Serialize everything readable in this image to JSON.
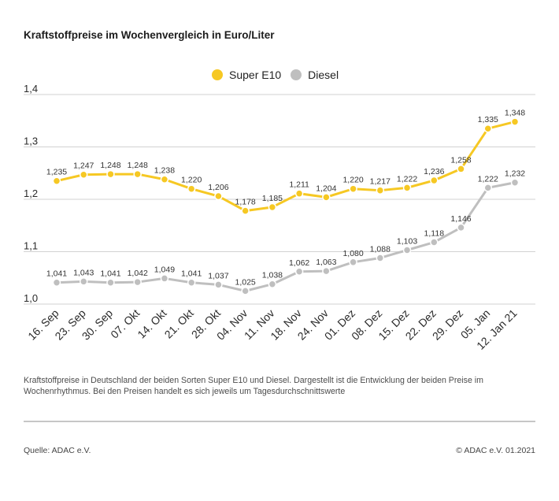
{
  "caption_lines": [
    "Kraftstoffpreise in Deutschland der beiden Sorten Super E10 und Diesel. Dargestellt ist die Entwicklung der beiden Preise im",
    "Wochenrhythmus. Bei den Preisen handelt es sich jeweils um Tagesdurchschnittswerte"
  ],
  "footer": {
    "source": "Quelle: ADAC e.V.",
    "copyright": "© ADAC e.V. 01.2021"
  },
  "chart_data": {
    "type": "line",
    "title": "Kraftstoffpreise im Wochenvergleich in Euro/Liter",
    "categories": [
      "16. Sep",
      "23. Sep",
      "30. Sep",
      "07. Okt",
      "14. Okt",
      "21. Okt",
      "28. Okt",
      "04. Nov",
      "11. Nov",
      "18. Nov",
      "24. Nov",
      "01. Dez",
      "08. Dez",
      "15. Dez",
      "22. Dez",
      "29. Dez",
      "05. Jan",
      "12. Jan 21"
    ],
    "series": [
      {
        "name": "Super E10",
        "color": "#f6c823",
        "values": [
          1.235,
          1.247,
          1.248,
          1.248,
          1.238,
          1.22,
          1.206,
          1.178,
          1.185,
          1.211,
          1.204,
          1.22,
          1.217,
          1.222,
          1.236,
          1.258,
          1.335,
          1.348
        ],
        "value_labels": [
          "1,235",
          "1,247",
          "1,248",
          "1,248",
          "1,238",
          "1,220",
          "1,206",
          "1,178",
          "1,185",
          "1,211",
          "1,204",
          "1,220",
          "1,217",
          "1,222",
          "1,236",
          "1,258",
          "1,335",
          "1,348"
        ]
      },
      {
        "name": "Diesel",
        "color": "#bfbfbf",
        "values": [
          1.041,
          1.043,
          1.041,
          1.042,
          1.049,
          1.041,
          1.037,
          1.025,
          1.038,
          1.062,
          1.063,
          1.08,
          1.088,
          1.103,
          1.118,
          1.146,
          1.222,
          1.232
        ],
        "value_labels": [
          "1,041",
          "1,043",
          "1,041",
          "1,042",
          "1,049",
          "1,041",
          "1,037",
          "1,025",
          "1,038",
          "1,062",
          "1,063",
          "1,080",
          "1,088",
          "1,103",
          "1,118",
          "1,146",
          "1,222",
          "1,232"
        ]
      }
    ],
    "ylim": [
      1.0,
      1.4
    ],
    "y_ticks": [
      1.0,
      1.1,
      1.2,
      1.3,
      1.4
    ],
    "y_tick_labels": [
      "1,0",
      "1,1",
      "1,2",
      "1,3",
      "1,4"
    ],
    "grid": true,
    "legend_position": "top-center",
    "data_labels": true
  }
}
